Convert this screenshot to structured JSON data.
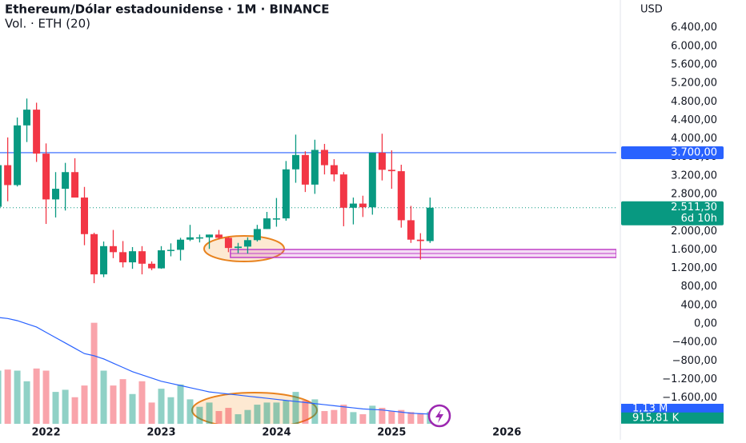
{
  "chart_data": {
    "type": "candlestick",
    "title": "Ethereum/Dólar estadounidense · 1M · BINANCE",
    "subtitle": "Vol. · ETH (20)",
    "currency": "USD",
    "up_color": "#089981",
    "down_color": "#f23645",
    "x": [
      2021.583,
      2021.667,
      2021.75,
      2021.833,
      2021.917,
      2022,
      2022.083,
      2022.167,
      2022.25,
      2022.333,
      2022.417,
      2022.5,
      2022.583,
      2022.667,
      2022.75,
      2022.833,
      2022.917,
      2023,
      2023.083,
      2023.167,
      2023.25,
      2023.333,
      2023.417,
      2023.5,
      2023.583,
      2023.667,
      2023.75,
      2023.833,
      2023.917,
      2024,
      2024.083,
      2024.167,
      2024.25,
      2024.333,
      2024.417,
      2024.5,
      2024.583,
      2024.667,
      2024.75,
      2024.833,
      2024.917,
      2025,
      2025.083,
      2025.167,
      2025.25,
      2025.333
    ],
    "open": [
      2530,
      3430,
      3000,
      4290,
      4630,
      3680,
      2690,
      2920,
      3280,
      2730,
      1940,
      1070,
      1680,
      1550,
      1330,
      1570,
      1300,
      1200,
      1590,
      1600,
      1820,
      1870,
      1870,
      1930,
      1860,
      1640,
      1670,
      1810,
      2050,
      2280,
      2280,
      3340,
      3650,
      3010,
      3760,
      3430,
      3230,
      2510,
      2600,
      2520,
      3700,
      3330,
      3300,
      2240,
      1820,
      1790
    ],
    "high": [
      3470,
      4030,
      4460,
      4870,
      4780,
      3900,
      3280,
      3480,
      3580,
      2960,
      1970,
      1780,
      2030,
      1790,
      1660,
      1680,
      1350,
      1680,
      1740,
      1860,
      2140,
      1930,
      1930,
      2030,
      1880,
      1750,
      1870,
      2140,
      2420,
      2720,
      3520,
      4090,
      3730,
      3980,
      3890,
      3560,
      3280,
      2730,
      2770,
      3680,
      4110,
      3750,
      3440,
      2550,
      1960,
      2730
    ],
    "low": [
      2450,
      2650,
      2970,
      3930,
      3500,
      2160,
      2300,
      2450,
      2780,
      1700,
      880,
      1010,
      1420,
      1220,
      1190,
      1070,
      1160,
      1190,
      1460,
      1370,
      1790,
      1760,
      1620,
      1830,
      1550,
      1530,
      1520,
      1780,
      2050,
      2100,
      2230,
      3050,
      2850,
      2810,
      3230,
      3080,
      2110,
      2150,
      2310,
      2360,
      3100,
      2920,
      2080,
      1750,
      1390,
      1750
    ],
    "close": [
      3430,
      3000,
      4290,
      4630,
      3680,
      2690,
      2920,
      3280,
      2730,
      1940,
      1070,
      1680,
      1550,
      1330,
      1570,
      1300,
      1200,
      1590,
      1600,
      1820,
      1870,
      1870,
      1930,
      1860,
      1640,
      1670,
      1810,
      2050,
      2280,
      2280,
      3340,
      3650,
      3010,
      3760,
      3430,
      3230,
      2510,
      2600,
      2520,
      3700,
      3330,
      3300,
      2240,
      1820,
      1790,
      2511.3
    ],
    "xlim": [
      2021.6,
      2026.95
    ],
    "xticks": [
      2022,
      2023,
      2024,
      2025,
      2026
    ],
    "ylim": [
      -2160,
      7000
    ],
    "yticks": [
      {
        "value": 6400,
        "label": "6.400,00"
      },
      {
        "value": 6000,
        "label": "6.000,00"
      },
      {
        "value": 5600,
        "label": "5.600,00"
      },
      {
        "value": 5200,
        "label": "5.200,00"
      },
      {
        "value": 4800,
        "label": "4.800,00"
      },
      {
        "value": 4400,
        "label": "4.400,00"
      },
      {
        "value": 4000,
        "label": "4.000,00"
      },
      {
        "value": 3600,
        "label": "3.600,00"
      },
      {
        "value": 3200,
        "label": "3.200,00"
      },
      {
        "value": 2800,
        "label": "2.800,00"
      },
      {
        "value": 2400,
        "label": "2.400,00"
      },
      {
        "value": 2000,
        "label": "2.000,00"
      },
      {
        "value": 1600,
        "label": "1.600,00"
      },
      {
        "value": 1200,
        "label": "1.200,00"
      },
      {
        "value": 800,
        "label": "800,00"
      },
      {
        "value": 400,
        "label": "400,00"
      },
      {
        "value": 0,
        "label": "0,00"
      },
      {
        "value": -400,
        "label": "−400,00"
      },
      {
        "value": -800,
        "label": "−800,00"
      },
      {
        "value": -1200,
        "label": "−1.200,00"
      },
      {
        "value": -1600,
        "label": "−1.600,00"
      }
    ],
    "hline": {
      "value": 3700,
      "label": "3.700,00",
      "color": "#2962ff"
    },
    "last_price": {
      "value": 2511.3,
      "label": "2.511,30",
      "countdown": "6d 10h"
    },
    "zone": {
      "from": 1435,
      "to": 1608,
      "x_start": 2023.6,
      "color": "#c040c8"
    },
    "volume": {
      "values": [
        5000000,
        5100000,
        5000000,
        4000000,
        5200000,
        5000000,
        3000000,
        3200000,
        2500000,
        3600000,
        9500000,
        5000000,
        3600000,
        4200000,
        2800000,
        4000000,
        2000000,
        3300000,
        2500000,
        3700000,
        2300000,
        1600000,
        2000000,
        1200000,
        1500000,
        900000,
        1300000,
        1800000,
        2000000,
        2000000,
        2200000,
        3000000,
        2200000,
        2300000,
        1200000,
        1300000,
        1800000,
        1100000,
        900000,
        1700000,
        1500000,
        1200000,
        1300000,
        1100000,
        1000000,
        1130000
      ],
      "ma": [
        10000000,
        9900000,
        9700000,
        9400000,
        9100000,
        8600000,
        8100000,
        7600000,
        7100000,
        6600000,
        6400000,
        6100000,
        5700000,
        5300000,
        4900000,
        4600000,
        4300000,
        4000000,
        3800000,
        3600000,
        3400000,
        3200000,
        3000000,
        2900000,
        2800000,
        2700000,
        2600000,
        2500000,
        2400000,
        2300000,
        2200000,
        2100000,
        2000000,
        1900000,
        1800000,
        1700000,
        1600000,
        1500000,
        1400000,
        1350000,
        1300000,
        1200000,
        1100000,
        1000000,
        950000,
        915810
      ],
      "ylim": [
        0,
        10000000
      ],
      "ma_color": "#2962ff",
      "last_label": {
        "value": 1130000,
        "label": "1,13 M"
      },
      "ma_label": {
        "value": 915810,
        "label": "915,81 K"
      }
    }
  }
}
